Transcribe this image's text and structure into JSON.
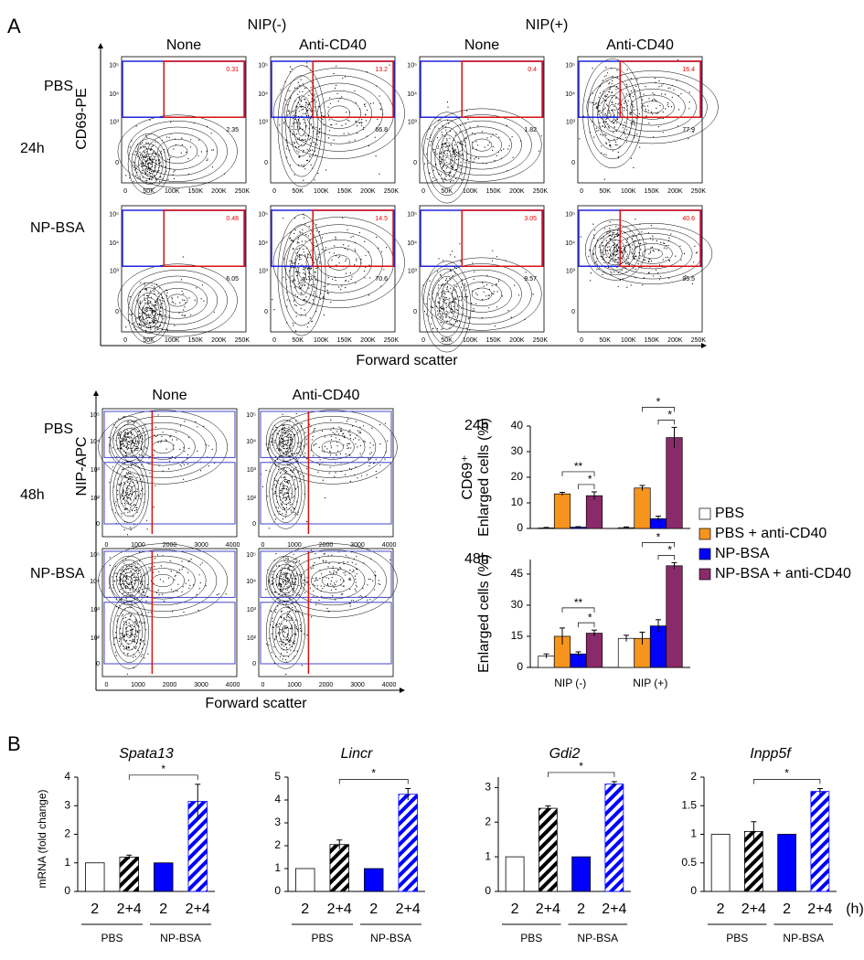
{
  "panel_labels": [
    "A",
    "B"
  ],
  "flow_24h": {
    "time": "24h",
    "groups": [
      "NIP(-)",
      "NIP(+)"
    ],
    "columns": [
      "None",
      "Anti-CD40",
      "None",
      "Anti-CD40"
    ],
    "rows": [
      "PBS",
      "NP-BSA"
    ],
    "y_label": "CD69-PE",
    "x_label": "Forward scatter",
    "x_ticks": [
      "0",
      "50K",
      "100K",
      "150K",
      "200K",
      "250K"
    ],
    "y_ticks": [
      "0",
      "10³",
      "10⁴",
      "10⁵"
    ],
    "gates": [
      [
        [
          "0.31",
          "2.35"
        ],
        [
          "13.2",
          "66.8"
        ],
        [
          "0.4",
          "1.82"
        ],
        [
          "16.4",
          "77.9"
        ]
      ],
      [
        [
          "0.48",
          "6.05"
        ],
        [
          "14.5",
          "70.6"
        ],
        [
          "3.05",
          "9.57"
        ],
        [
          "40.6",
          "95.5"
        ]
      ]
    ]
  },
  "flow_48h": {
    "time": "48h",
    "columns": [
      "None",
      "Anti-CD40"
    ],
    "rows": [
      "PBS",
      "NP-BSA"
    ],
    "y_label": "NIP-APC",
    "x_label": "Forward scatter",
    "x_ticks": [
      "0",
      "1000",
      "2000",
      "3000",
      "4000"
    ],
    "y_ticks": [
      "0",
      "10²",
      "10³",
      "10⁴",
      "10⁵"
    ]
  },
  "chart_data": [
    {
      "type": "bar",
      "time_label": "24h",
      "ylabel": [
        "CD69⁺",
        "Enlarged cells (%)"
      ],
      "categories": [
        null,
        null
      ],
      "ylim": [
        0,
        40
      ],
      "yticks": [
        0,
        10,
        20,
        30,
        40
      ],
      "series": [
        {
          "name": "PBS",
          "color": "#ffffff",
          "values": [
            0.2,
            0.3
          ],
          "errors": [
            0.2,
            0.3
          ]
        },
        {
          "name": "PBS + anti-CD40",
          "color": "#f7941d",
          "values": [
            13.5,
            15.8
          ],
          "errors": [
            0.6,
            1.0
          ]
        },
        {
          "name": "NP-BSA",
          "color": "#0000ff",
          "values": [
            0.5,
            3.8
          ],
          "errors": [
            0.2,
            1.0
          ]
        },
        {
          "name": "NP-BSA + anti-CD40",
          "color": "#8b2a6b",
          "values": [
            12.8,
            35.5
          ],
          "errors": [
            1.5,
            4.0
          ]
        }
      ],
      "annotations": [
        "**",
        "*",
        "*",
        "*"
      ]
    },
    {
      "type": "bar",
      "time_label": "48h",
      "ylabel": [
        "Enlarged cells (%)"
      ],
      "categories": [
        "NIP (-)",
        "NIP (+)"
      ],
      "ylim": [
        0,
        52
      ],
      "yticks": [
        0,
        15,
        30,
        45
      ],
      "series": [
        {
          "color": "#ffffff",
          "values": [
            5.5,
            14
          ],
          "errors": [
            1,
            1.5
          ]
        },
        {
          "color": "#f7941d",
          "values": [
            15,
            14
          ],
          "errors": [
            4,
            3
          ]
        },
        {
          "color": "#0000ff",
          "values": [
            6.5,
            20
          ],
          "errors": [
            1,
            3
          ]
        },
        {
          "color": "#8b2a6b",
          "values": [
            16.5,
            49
          ],
          "errors": [
            1.5,
            1.5
          ]
        }
      ],
      "annotations": [
        "**",
        "*",
        "*",
        "*"
      ]
    },
    {
      "type": "bar",
      "title": "Spata13",
      "ylabel": [
        "mRNA (fold change)"
      ],
      "categories": [
        "2",
        "2+4",
        "2",
        "2+4"
      ],
      "groups": [
        "PBS",
        "NP-BSA"
      ],
      "values": [
        1,
        1.2,
        1,
        3.15
      ],
      "errors": [
        0,
        0.07,
        0,
        0.6
      ],
      "colors": [
        "#ffffff",
        "#000000",
        "#0000ff",
        "#0000ff"
      ],
      "hatch": [
        false,
        true,
        false,
        true
      ],
      "ylim": [
        0,
        4
      ],
      "yticks": [
        0,
        1,
        2,
        3,
        4
      ],
      "annotations": [
        "*"
      ]
    },
    {
      "type": "bar",
      "title": "Lincr",
      "categories": [
        "2",
        "2+4",
        "2",
        "2+4"
      ],
      "groups": [
        "PBS",
        "NP-BSA"
      ],
      "values": [
        1,
        2.05,
        1,
        4.25
      ],
      "errors": [
        0,
        0.2,
        0,
        0.25
      ],
      "colors": [
        "#ffffff",
        "#000000",
        "#0000ff",
        "#0000ff"
      ],
      "hatch": [
        false,
        true,
        false,
        true
      ],
      "ylim": [
        0,
        5
      ],
      "yticks": [
        0,
        1,
        2,
        3,
        4,
        5
      ],
      "annotations": [
        "*"
      ]
    },
    {
      "type": "bar",
      "title": "Gdi2",
      "categories": [
        "2",
        "2+4",
        "2",
        "2+4"
      ],
      "groups": [
        "PBS",
        "NP-BSA"
      ],
      "values": [
        1,
        2.4,
        1,
        3.1
      ],
      "errors": [
        0,
        0.07,
        0,
        0.07
      ],
      "colors": [
        "#ffffff",
        "#000000",
        "#0000ff",
        "#0000ff"
      ],
      "hatch": [
        false,
        true,
        false,
        true
      ],
      "ylim": [
        0,
        3.3
      ],
      "yticks": [
        0,
        1,
        2,
        3
      ],
      "annotations": [
        "*"
      ]
    },
    {
      "type": "bar",
      "title": "Inpp5f",
      "x_unit": "(h)",
      "categories": [
        "2",
        "2+4",
        "2",
        "2+4"
      ],
      "groups": [
        "PBS",
        "NP-BSA"
      ],
      "values": [
        1,
        1.05,
        1,
        1.75
      ],
      "errors": [
        0,
        0.17,
        0,
        0.05
      ],
      "colors": [
        "#ffffff",
        "#000000",
        "#0000ff",
        "#0000ff"
      ],
      "hatch": [
        false,
        true,
        false,
        true
      ],
      "ylim": [
        0,
        2
      ],
      "yticks": [
        0,
        0.5,
        1,
        1.5,
        2
      ],
      "annotations": [
        "*"
      ]
    }
  ]
}
